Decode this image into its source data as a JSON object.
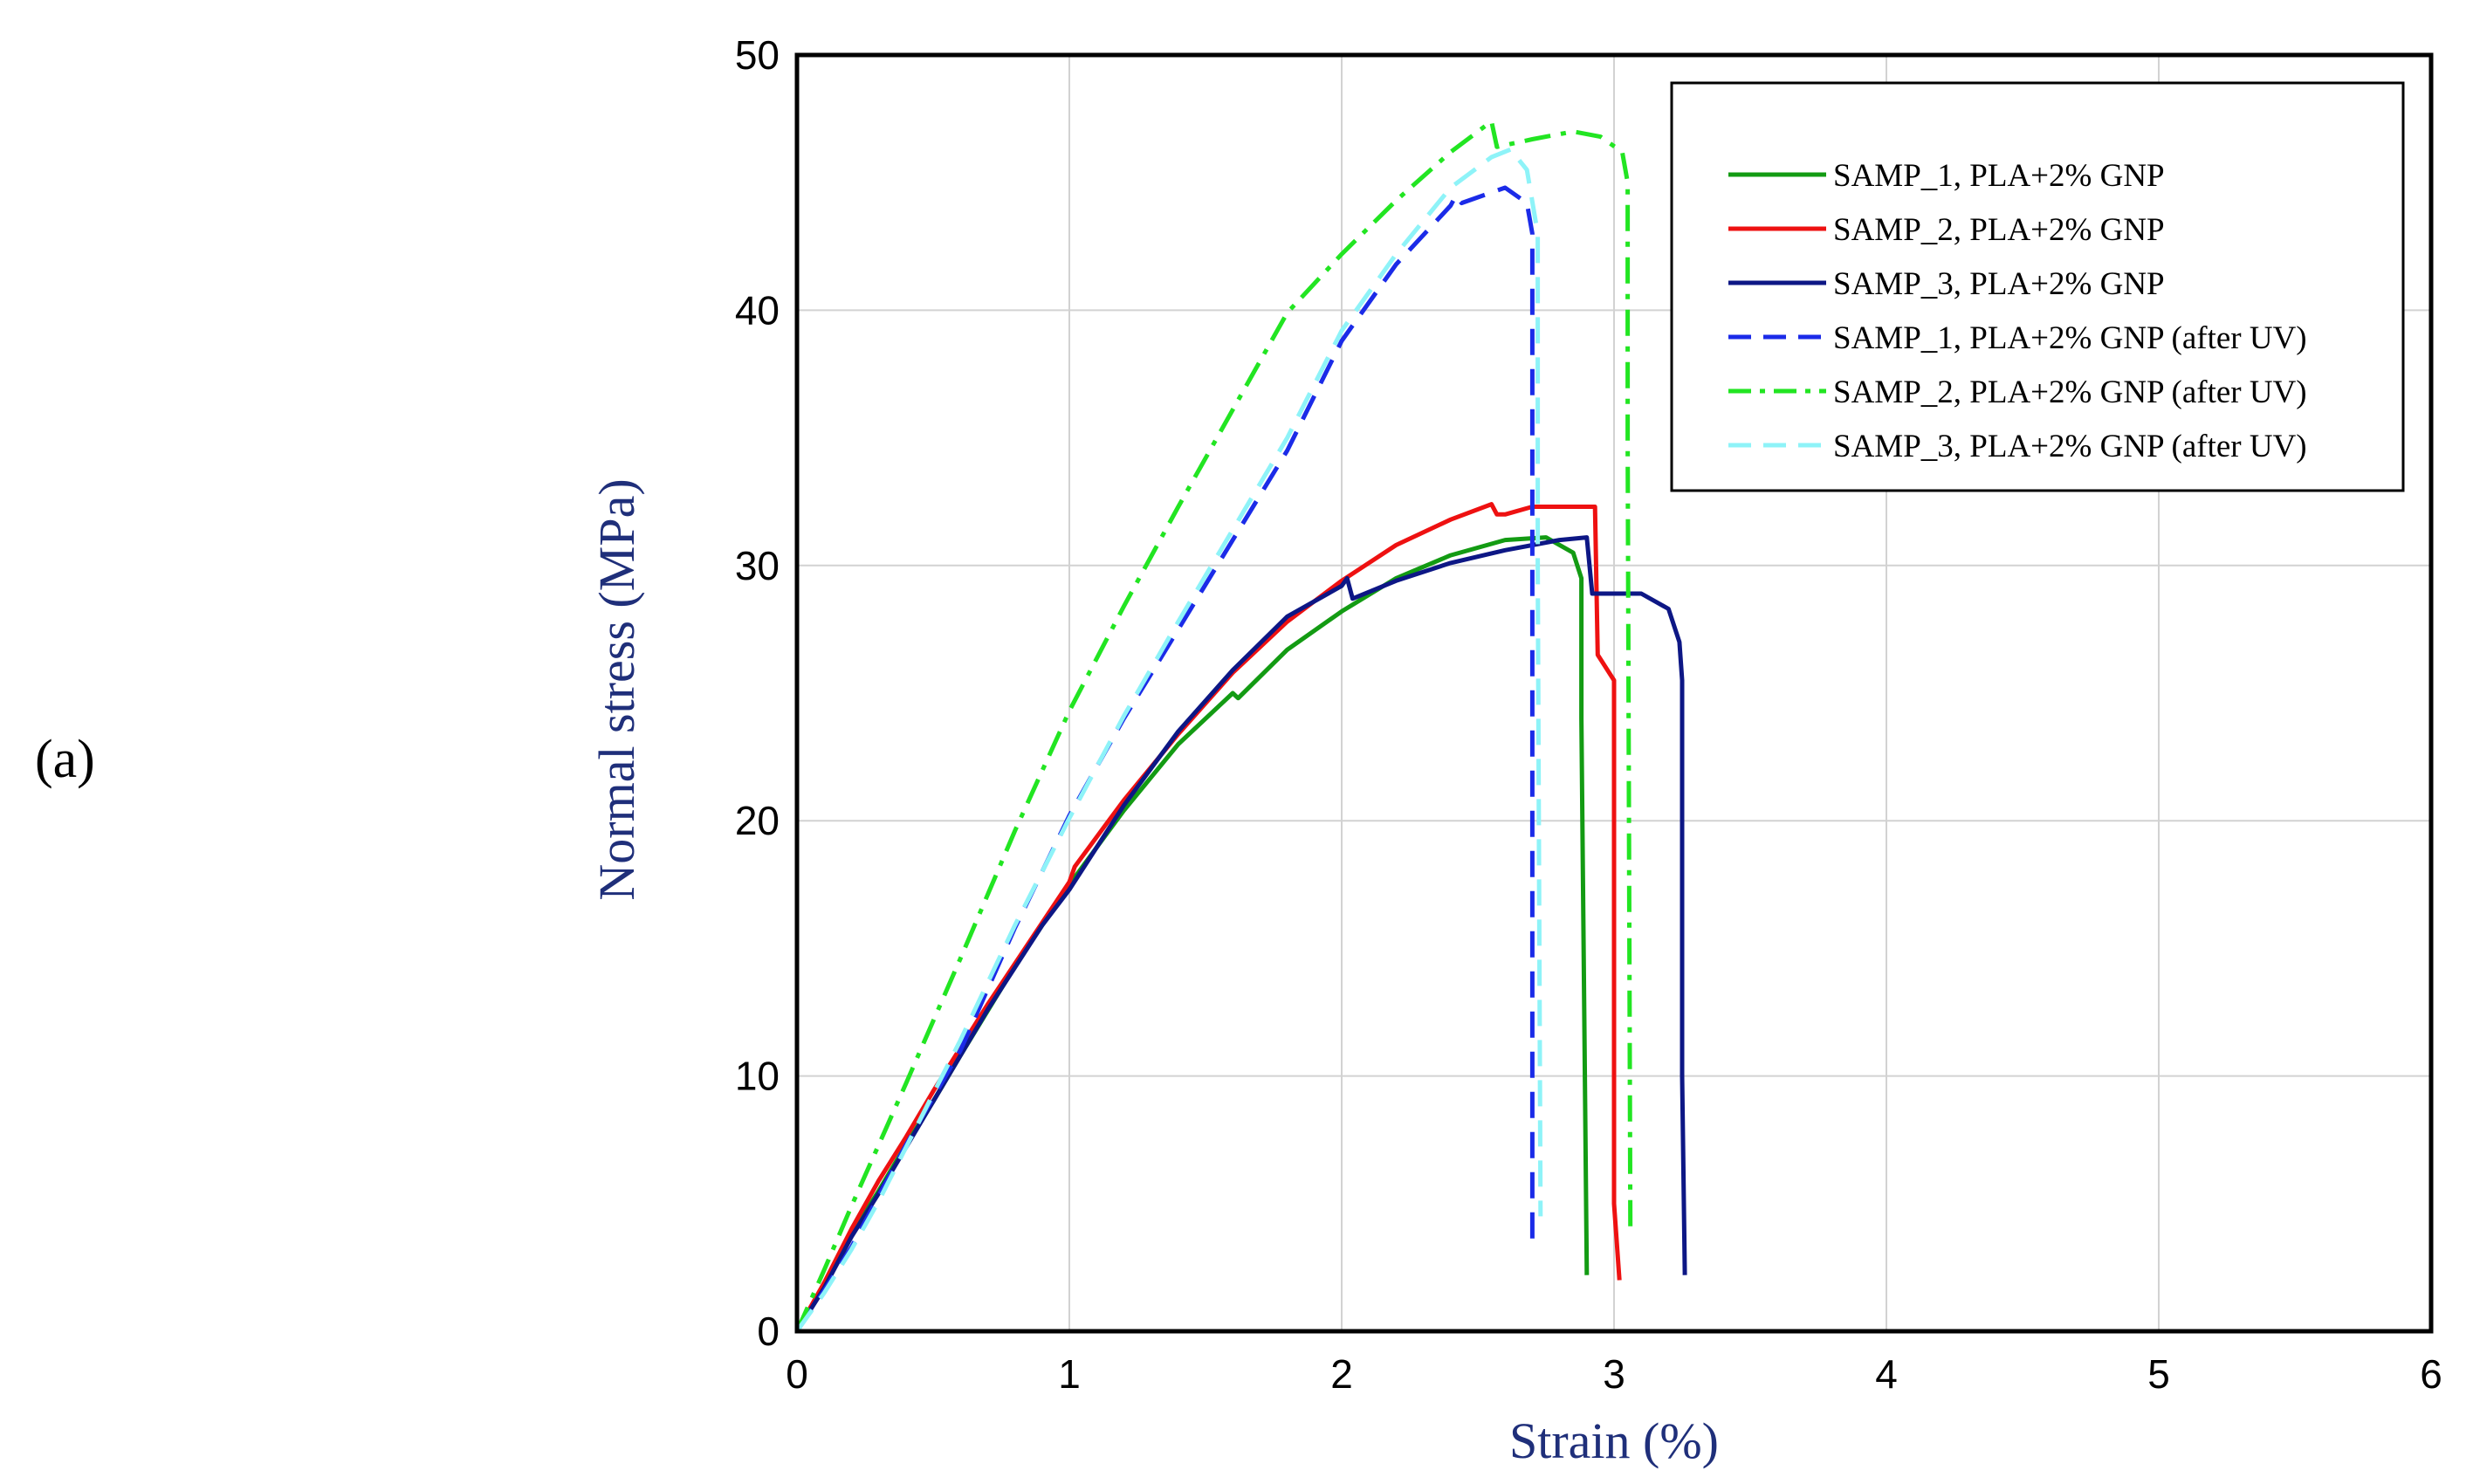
{
  "panel_label": "(a)",
  "chart_data": {
    "type": "line",
    "title": "",
    "xlabel": "Strain (%)",
    "ylabel": "Normal stress (MPa)",
    "xlim": [
      0,
      6
    ],
    "ylim": [
      0,
      50
    ],
    "x_ticks": [
      "0",
      "1",
      "2",
      "3",
      "4",
      "5",
      "6"
    ],
    "y_ticks": [
      "0",
      "10",
      "20",
      "30",
      "40",
      "50"
    ],
    "grid": true,
    "legend_position": "top-right",
    "series": [
      {
        "name": "SAMP_1, PLA+2% GNP",
        "color": "#139b13",
        "style": "solid",
        "points": [
          [
            0,
            0
          ],
          [
            0.1,
            1.8
          ],
          [
            0.2,
            3.8
          ],
          [
            0.3,
            5.5
          ],
          [
            0.4,
            7.3
          ],
          [
            0.5,
            9.0
          ],
          [
            0.6,
            10.8
          ],
          [
            0.8,
            14.3
          ],
          [
            1.0,
            17.5
          ],
          [
            1.2,
            20.4
          ],
          [
            1.4,
            23.0
          ],
          [
            1.6,
            25.0
          ],
          [
            1.62,
            24.8
          ],
          [
            1.8,
            26.7
          ],
          [
            2.0,
            28.2
          ],
          [
            2.2,
            29.5
          ],
          [
            2.4,
            30.4
          ],
          [
            2.6,
            31.0
          ],
          [
            2.75,
            31.1
          ],
          [
            2.85,
            30.5
          ],
          [
            2.88,
            29.5
          ],
          [
            2.88,
            24.0
          ],
          [
            2.9,
            2.2
          ]
        ]
      },
      {
        "name": "SAMP_2, PLA+2% GNP",
        "color": "#ee1111",
        "style": "solid",
        "points": [
          [
            0,
            0
          ],
          [
            0.1,
            1.9
          ],
          [
            0.2,
            4.0
          ],
          [
            0.3,
            5.9
          ],
          [
            0.4,
            7.6
          ],
          [
            0.5,
            9.4
          ],
          [
            0.7,
            12.8
          ],
          [
            0.9,
            16.0
          ],
          [
            1.0,
            17.6
          ],
          [
            1.02,
            18.2
          ],
          [
            1.2,
            20.8
          ],
          [
            1.4,
            23.4
          ],
          [
            1.6,
            25.8
          ],
          [
            1.8,
            27.8
          ],
          [
            2.0,
            29.4
          ],
          [
            2.2,
            30.8
          ],
          [
            2.4,
            31.8
          ],
          [
            2.55,
            32.4
          ],
          [
            2.57,
            32.0
          ],
          [
            2.6,
            32.0
          ],
          [
            2.7,
            32.3
          ],
          [
            2.93,
            32.3
          ],
          [
            2.94,
            26.5
          ],
          [
            3.0,
            25.5
          ],
          [
            3.0,
            5.0
          ],
          [
            3.02,
            2.0
          ]
        ]
      },
      {
        "name": "SAMP_3, PLA+2% GNP",
        "color": "#0d1785",
        "style": "solid",
        "points": [
          [
            0,
            0
          ],
          [
            0.1,
            1.7
          ],
          [
            0.2,
            3.7
          ],
          [
            0.3,
            5.4
          ],
          [
            0.4,
            7.2
          ],
          [
            0.5,
            9.0
          ],
          [
            0.7,
            12.6
          ],
          [
            0.9,
            15.9
          ],
          [
            1.0,
            17.3
          ],
          [
            1.2,
            20.6
          ],
          [
            1.4,
            23.5
          ],
          [
            1.6,
            25.9
          ],
          [
            1.8,
            28.0
          ],
          [
            2.0,
            29.2
          ],
          [
            2.02,
            29.5
          ],
          [
            2.04,
            28.7
          ],
          [
            2.2,
            29.4
          ],
          [
            2.4,
            30.1
          ],
          [
            2.6,
            30.6
          ],
          [
            2.8,
            31.0
          ],
          [
            2.9,
            31.1
          ],
          [
            2.92,
            28.9
          ],
          [
            3.1,
            28.9
          ],
          [
            3.2,
            28.3
          ],
          [
            3.24,
            27.0
          ],
          [
            3.25,
            25.5
          ],
          [
            3.25,
            10.0
          ],
          [
            3.26,
            2.2
          ]
        ]
      },
      {
        "name": "SAMP_1, PLA+2% GNP (after UV)",
        "color": "#1b2be8",
        "style": "dashed",
        "points": [
          [
            0,
            0
          ],
          [
            0.1,
            1.6
          ],
          [
            0.2,
            3.3
          ],
          [
            0.3,
            5.3
          ],
          [
            0.4,
            7.3
          ],
          [
            0.6,
            11.0
          ],
          [
            0.8,
            15.8
          ],
          [
            1.0,
            20.2
          ],
          [
            1.2,
            24.0
          ],
          [
            1.4,
            27.5
          ],
          [
            1.6,
            31.0
          ],
          [
            1.8,
            34.5
          ],
          [
            2.0,
            38.8
          ],
          [
            2.2,
            41.8
          ],
          [
            2.4,
            44.1
          ],
          [
            2.42,
            44.5
          ],
          [
            2.44,
            44.2
          ],
          [
            2.6,
            44.8
          ],
          [
            2.68,
            44.2
          ],
          [
            2.7,
            43.0
          ],
          [
            2.7,
            33.0
          ],
          [
            2.7,
            3.6
          ]
        ]
      },
      {
        "name": "SAMP_2, PLA+2% GNP (after UV)",
        "color": "#22e522",
        "style": "dashdot",
        "points": [
          [
            0,
            0
          ],
          [
            0.1,
            2.4
          ],
          [
            0.2,
            4.9
          ],
          [
            0.4,
            9.7
          ],
          [
            0.6,
            14.6
          ],
          [
            0.8,
            19.6
          ],
          [
            1.0,
            24.3
          ],
          [
            1.2,
            28.4
          ],
          [
            1.4,
            32.3
          ],
          [
            1.6,
            36.1
          ],
          [
            1.8,
            39.9
          ],
          [
            2.0,
            42.2
          ],
          [
            2.2,
            44.3
          ],
          [
            2.4,
            46.2
          ],
          [
            2.55,
            47.4
          ],
          [
            2.57,
            46.4
          ],
          [
            2.7,
            46.7
          ],
          [
            2.85,
            47.0
          ],
          [
            2.95,
            46.8
          ],
          [
            3.03,
            46.2
          ],
          [
            3.05,
            45.0
          ],
          [
            3.05,
            35.0
          ],
          [
            3.06,
            4.0
          ]
        ]
      },
      {
        "name": "SAMP_3, PLA+2% GNP (after UV)",
        "color": "#8ef3f8",
        "style": "dashed",
        "points": [
          [
            0,
            0
          ],
          [
            0.1,
            1.5
          ],
          [
            0.2,
            3.2
          ],
          [
            0.3,
            5.1
          ],
          [
            0.4,
            7.2
          ],
          [
            0.6,
            11.4
          ],
          [
            0.8,
            15.9
          ],
          [
            1.0,
            20.1
          ],
          [
            1.2,
            24.1
          ],
          [
            1.4,
            27.8
          ],
          [
            1.6,
            31.4
          ],
          [
            1.8,
            35.0
          ],
          [
            2.0,
            39.2
          ],
          [
            2.2,
            42.2
          ],
          [
            2.4,
            44.8
          ],
          [
            2.55,
            46.0
          ],
          [
            2.62,
            46.3
          ],
          [
            2.68,
            45.5
          ],
          [
            2.72,
            43.0
          ],
          [
            2.72,
            30.0
          ],
          [
            2.73,
            4.5
          ]
        ]
      }
    ]
  }
}
